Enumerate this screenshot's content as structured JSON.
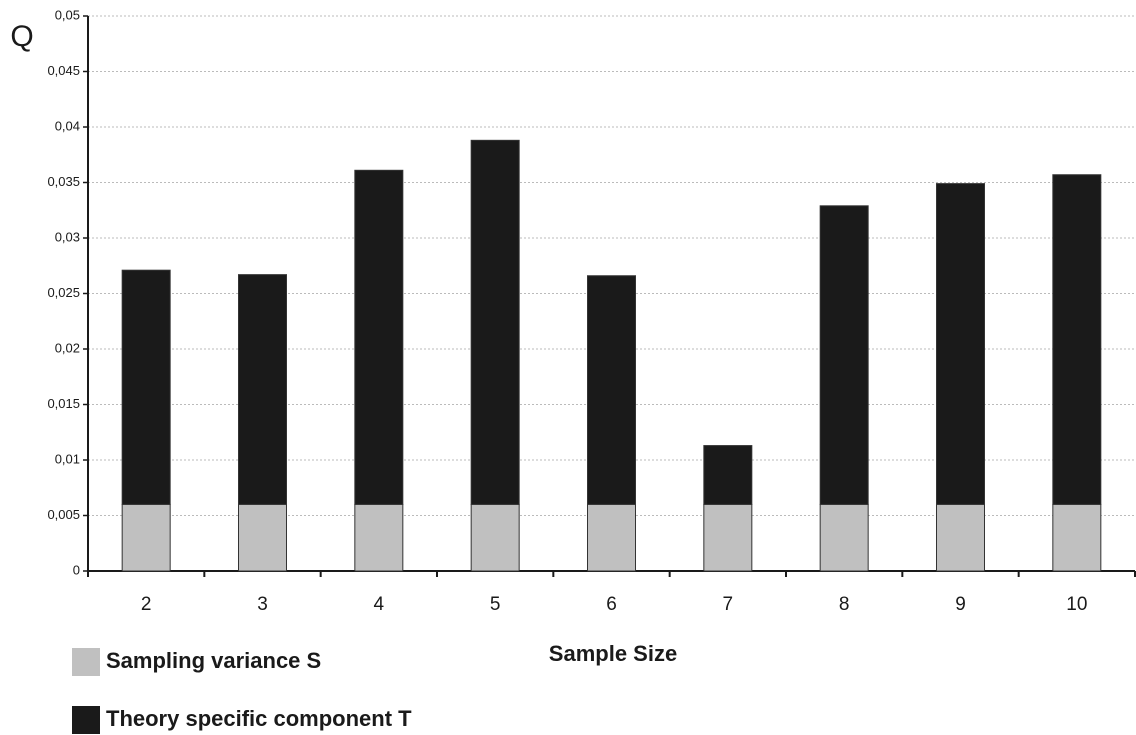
{
  "chart_data": {
    "type": "stacked-bar",
    "y_label": "Q",
    "x_label": "Sample Size",
    "categories": [
      "2",
      "3",
      "4",
      "5",
      "6",
      "7",
      "8",
      "9",
      "10"
    ],
    "series": [
      {
        "name": "Sampling variance S",
        "color": "#c0c0c0",
        "values": [
          0.006,
          0.006,
          0.006,
          0.006,
          0.006,
          0.006,
          0.006,
          0.006,
          0.006
        ]
      },
      {
        "name": "Theory specific component T",
        "color": "#1a1a1a",
        "values": [
          0.0211,
          0.0207,
          0.0301,
          0.0328,
          0.0206,
          0.0053,
          0.0269,
          0.0289,
          0.0297
        ]
      }
    ],
    "ylim": [
      0,
      0.05
    ],
    "yticks": [
      0,
      {
        "value": 0.005,
        "label": "0,005"
      },
      {
        "value": 0.01,
        "label": "0,01"
      },
      {
        "value": 0.015,
        "label": "0,015"
      },
      {
        "value": 0.02,
        "label": "0,02"
      },
      {
        "value": 0.025,
        "label": "0,025"
      },
      {
        "value": 0.03,
        "label": "0,03"
      },
      {
        "value": 0.035,
        "label": "0,035"
      },
      {
        "value": 0.04,
        "label": "0,04"
      },
      {
        "value": 0.045,
        "label": "0,045"
      },
      {
        "value": 0.05,
        "label": "0,05"
      }
    ],
    "grid": true
  }
}
